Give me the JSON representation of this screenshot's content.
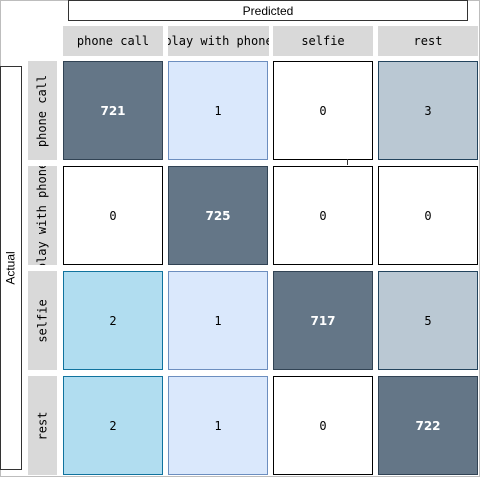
{
  "chart_data": {
    "type": "heatmap",
    "title": "",
    "xlabel": "Predicted",
    "ylabel": "Actual",
    "categories": [
      "phone call",
      "play with phone",
      "selfie",
      "rest"
    ],
    "rows": [
      "phone call",
      "play with phone",
      "selfie",
      "rest"
    ],
    "values": [
      [
        721,
        1,
        0,
        3
      ],
      [
        0,
        725,
        0,
        0
      ],
      [
        2,
        1,
        717,
        5
      ],
      [
        2,
        1,
        0,
        722
      ]
    ],
    "cell_colors": [
      [
        "#647687",
        "#dae8fc",
        "#ffffff",
        "#bac8d3"
      ],
      [
        "#ffffff",
        "#647687",
        "#ffffff",
        "#ffffff"
      ],
      [
        "#b1ddf0",
        "#dae8fc",
        "#647687",
        "#bac8d3"
      ],
      [
        "#b1ddf0",
        "#dae8fc",
        "#ffffff",
        "#647687"
      ]
    ],
    "border_colors": [
      [
        "#314354",
        "#6c8ebf",
        "#000000",
        "#23445d"
      ],
      [
        "#000000",
        "#314354",
        "#000000",
        "#000000"
      ],
      [
        "#10739e",
        "#6c8ebf",
        "#314354",
        "#23445d"
      ],
      [
        "#10739e",
        "#6c8ebf",
        "#000000",
        "#314354"
      ]
    ],
    "dark_fill": "#647687",
    "header_fill": "#d9d9d9"
  }
}
